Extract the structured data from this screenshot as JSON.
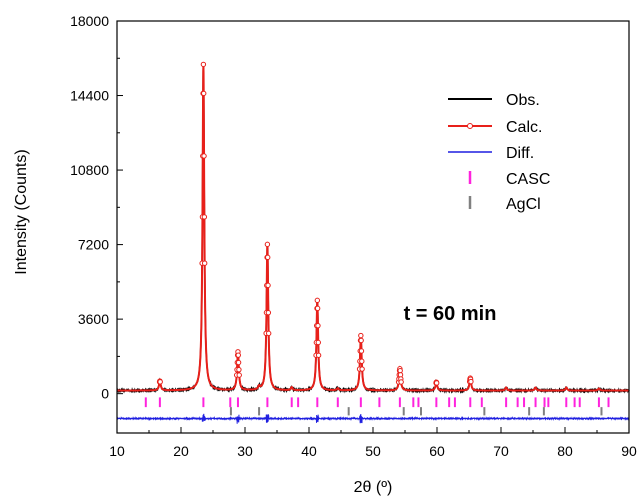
{
  "chart_data": {
    "type": "line",
    "xlabel": "2θ (º)",
    "ylabel": "Intensity (Counts)",
    "xlim": [
      10,
      90
    ],
    "ylim": [
      -1900,
      18000
    ],
    "x_ticks": [
      10,
      20,
      30,
      40,
      50,
      60,
      70,
      80,
      90
    ],
    "x_tick_labels": [
      "10",
      "20",
      "30",
      "40",
      "50",
      "60",
      "70",
      "80",
      "90"
    ],
    "y_ticks": [
      0,
      3600,
      7200,
      10800,
      14400,
      18000
    ],
    "y_tick_labels": [
      "0",
      "3600",
      "7200",
      "10800",
      "14400",
      "18000"
    ],
    "grid": false,
    "legend_position": "top-right",
    "annotation": "t = 60 min",
    "baseline": 150,
    "peaks": [
      {
        "x": 16.7,
        "y": 600
      },
      {
        "x": 23.5,
        "y": 15900
      },
      {
        "x": 28.9,
        "y": 2000
      },
      {
        "x": 32.2,
        "y": 300
      },
      {
        "x": 33.5,
        "y": 7200
      },
      {
        "x": 37.3,
        "y": 300
      },
      {
        "x": 41.3,
        "y": 4500
      },
      {
        "x": 44.5,
        "y": 250
      },
      {
        "x": 48.1,
        "y": 2800
      },
      {
        "x": 54.2,
        "y": 1200
      },
      {
        "x": 59.9,
        "y": 550
      },
      {
        "x": 65.2,
        "y": 750
      },
      {
        "x": 70.8,
        "y": 300
      },
      {
        "x": 75.4,
        "y": 300
      },
      {
        "x": 80.2,
        "y": 300
      },
      {
        "x": 85.3,
        "y": 250
      }
    ],
    "series": [
      {
        "name": "Obs.",
        "color": "#000000"
      },
      {
        "name": "Calc.",
        "color": "#e8201a"
      },
      {
        "name": "Diff.",
        "color": "#1f1fe0",
        "offset": -1200
      },
      {
        "name": "CASC",
        "color": "#ff22dd",
        "marks_x": [
          14.5,
          16.7,
          23.5,
          27.7,
          28.9,
          33.5,
          37.3,
          38.3,
          41.3,
          44.5,
          48.1,
          51.0,
          54.2,
          56.3,
          57.1,
          59.9,
          61.9,
          62.8,
          65.2,
          67.0,
          70.8,
          72.6,
          73.6,
          75.4,
          76.8,
          77.4,
          80.2,
          81.5,
          82.3,
          85.3,
          86.8
        ]
      },
      {
        "name": "AgCl",
        "color": "#808080",
        "marks_x": [
          27.8,
          32.2,
          46.2,
          54.8,
          57.5,
          67.4,
          74.4,
          76.7,
          85.7
        ]
      }
    ]
  }
}
